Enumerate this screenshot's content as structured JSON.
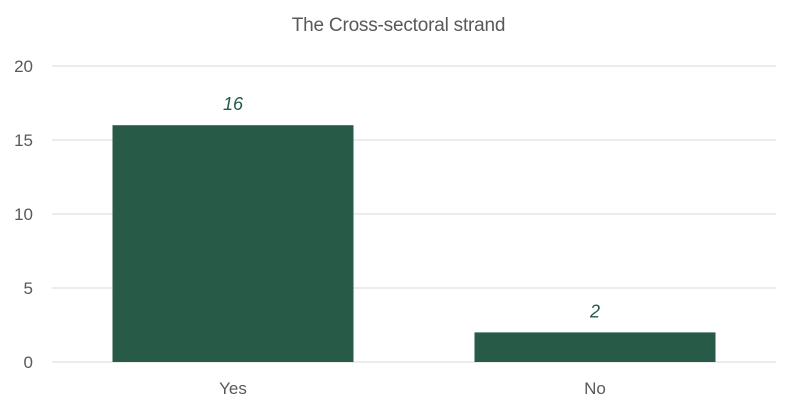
{
  "chart_data": {
    "type": "bar",
    "title": "The Cross-sectoral strand",
    "categories": [
      "Yes",
      "No"
    ],
    "values": [
      16,
      2
    ],
    "data_labels": [
      "16",
      "2"
    ],
    "xlabel": "",
    "ylabel": "",
    "ylim": [
      0,
      20
    ],
    "yticks": [
      0,
      5,
      10,
      15,
      20
    ],
    "ytick_labels": [
      "0",
      "5",
      "10",
      "15",
      "20"
    ],
    "grid": true,
    "legend": "none",
    "bar_color": "#285a48",
    "data_label_color": "#245a47"
  }
}
